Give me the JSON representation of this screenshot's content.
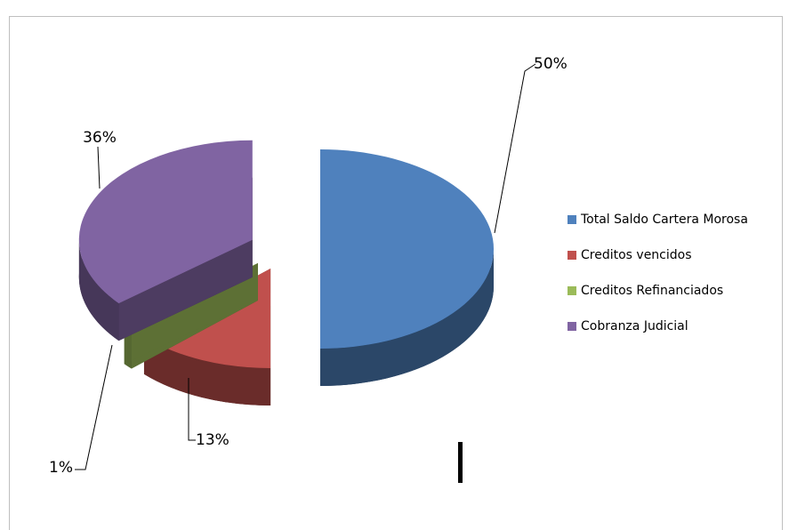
{
  "chart_data": {
    "type": "pie",
    "categories": [
      "Total Saldo Cartera Morosa",
      "Creditos vencidos",
      "Creditos Refinanciados",
      "Cobranza Judicial"
    ],
    "values": [
      50,
      13,
      1,
      36
    ],
    "value_labels": [
      "50%",
      "13%",
      "1%",
      "36%"
    ],
    "colors": [
      "#4f81bd",
      "#c0504d",
      "#9bbb59",
      "#8064a2"
    ],
    "legend": "right"
  }
}
